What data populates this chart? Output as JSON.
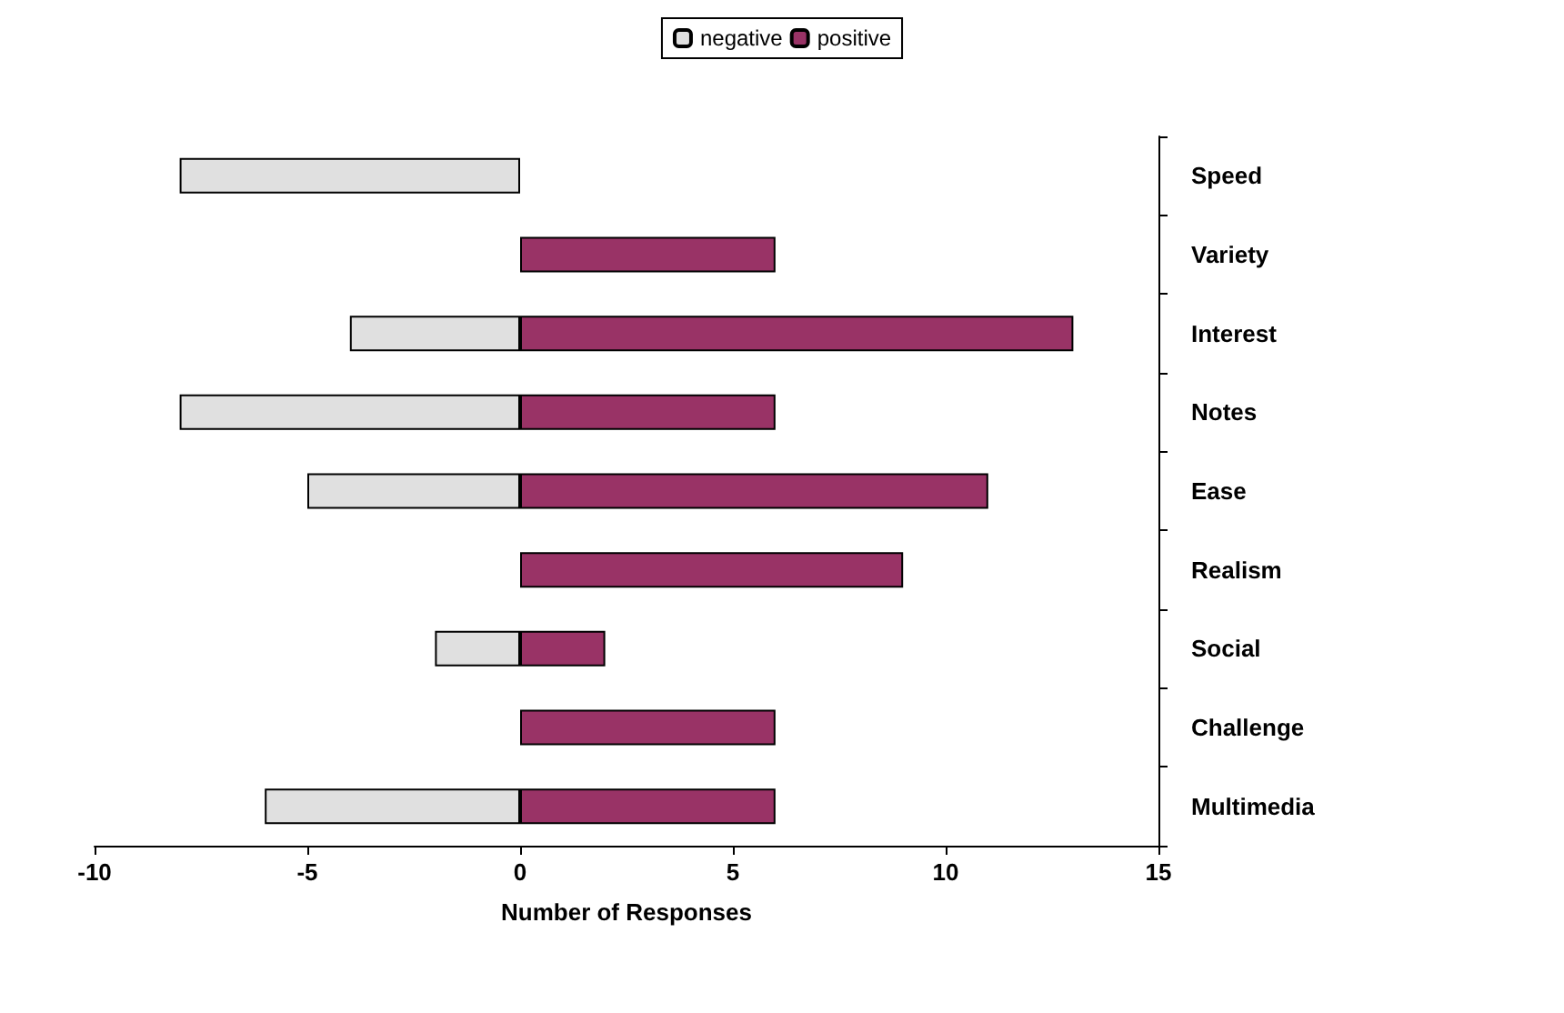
{
  "chart_data": {
    "type": "bar",
    "orientation": "horizontal",
    "stacked": true,
    "categories": [
      "Speed",
      "Variety",
      "Interest",
      "Notes",
      "Ease",
      "Realism",
      "Social",
      "Challenge",
      "Multimedia"
    ],
    "series": [
      {
        "name": "negative",
        "color": "#e0e0e0",
        "values": [
          -8,
          null,
          -4,
          -8,
          -5,
          null,
          -2,
          null,
          -6
        ]
      },
      {
        "name": "positive",
        "color": "#993366",
        "values": [
          null,
          6,
          13,
          6,
          11,
          9,
          2,
          6,
          6
        ]
      }
    ],
    "xlabel": "Number of Responses",
    "xlim": [
      -10,
      15
    ],
    "xticks": [
      -10,
      -5,
      0,
      5,
      10,
      15
    ],
    "grid": false,
    "legend": "top"
  }
}
